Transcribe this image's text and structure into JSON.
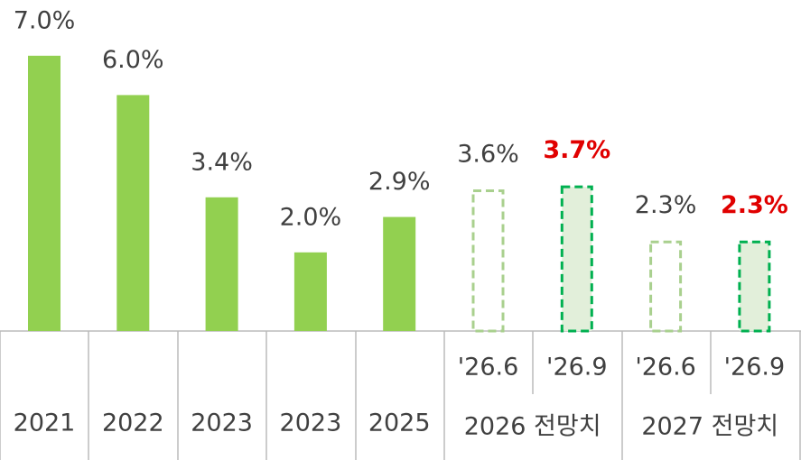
{
  "chart_data": {
    "type": "bar",
    "categories": [
      "2021",
      "2022",
      "2023",
      "2023",
      "2025",
      "'26.6",
      "'26.9",
      "'26.6",
      "'26.9"
    ],
    "group_labels": [
      "2026 전망치",
      "2027 전망치"
    ],
    "values": [
      7.0,
      6.0,
      3.4,
      2.0,
      2.9,
      3.6,
      3.7,
      2.3,
      2.3
    ],
    "value_labels": [
      "7.0%",
      "6.0%",
      "3.4%",
      "2.0%",
      "2.9%",
      "3.6%",
      "3.7%",
      "2.3%",
      "2.3%"
    ],
    "colors": [
      "#92d050",
      "#92d050",
      "#92d050",
      "#92d050",
      "#92d050",
      "#a9d08e",
      "#00b050",
      "#a9d08e",
      "#00b050"
    ],
    "fills": [
      "#92d050",
      "#92d050",
      "#92d050",
      "#92d050",
      "#92d050",
      "none",
      "#e2efda",
      "none",
      "#e2efda"
    ],
    "dashed": [
      false,
      false,
      false,
      false,
      false,
      true,
      true,
      true,
      true
    ],
    "label_colors": [
      "#404040",
      "#404040",
      "#404040",
      "#404040",
      "#404040",
      "#404040",
      "#e00000",
      "#404040",
      "#e00000"
    ]
  }
}
